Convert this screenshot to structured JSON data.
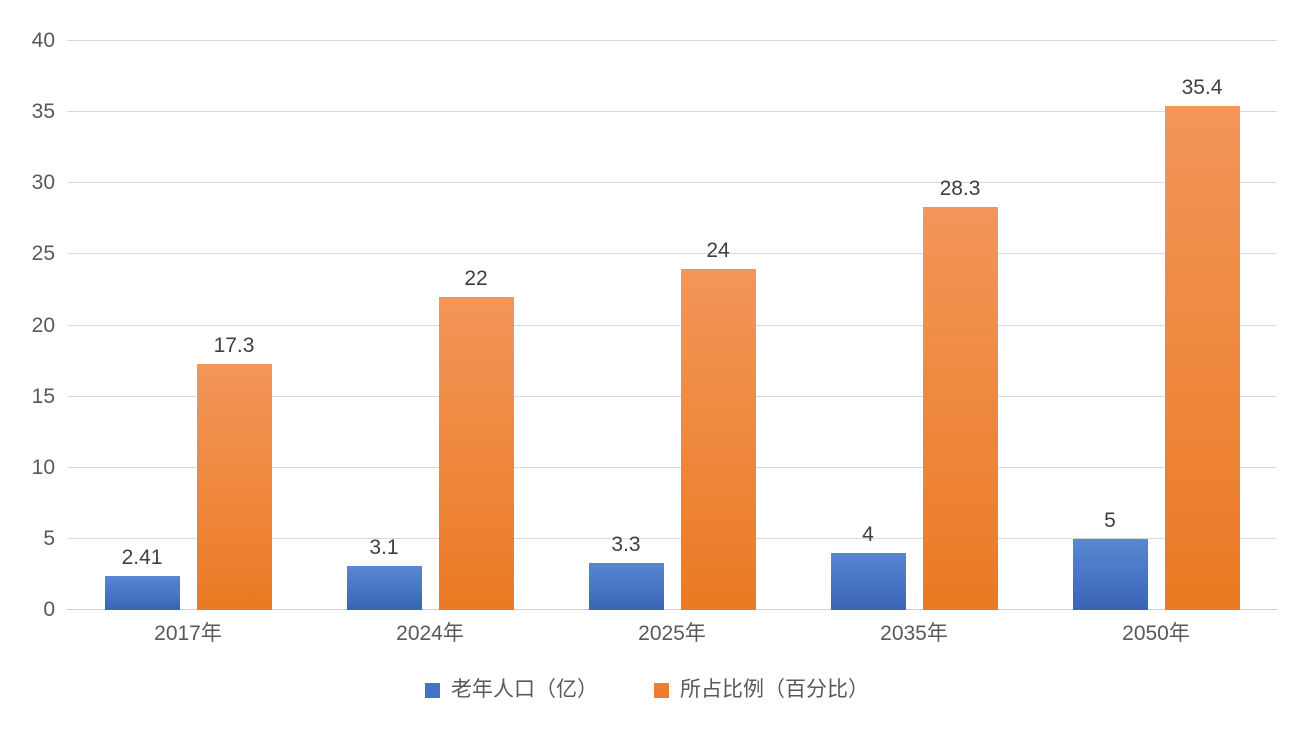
{
  "chart_data": {
    "type": "bar",
    "title": "",
    "categories": [
      "2017年",
      "2024年",
      "2025年",
      "2035年",
      "2050年"
    ],
    "series": [
      {
        "name": "老年人口（亿）",
        "color": "#4472C4",
        "gradient_top": "#5887D3",
        "gradient_bottom": "#3A64B7",
        "values": [
          2.41,
          3.1,
          3.3,
          4,
          5
        ],
        "data_labels": [
          "2.41",
          "3.1",
          "3.3",
          "4",
          "5"
        ]
      },
      {
        "name": "所占比例（百分比）",
        "color": "#ED7D31",
        "gradient_top": "#F39659",
        "gradient_bottom": "#EA7A23",
        "values": [
          17.3,
          22,
          24,
          28.3,
          35.4
        ],
        "data_labels": [
          "17.3",
          "22",
          "24",
          "28.3",
          "35.4"
        ]
      }
    ],
    "y_axis": {
      "min": 0,
      "max": 40,
      "step": 5,
      "tick_labels": [
        "0",
        "5",
        "10",
        "15",
        "20",
        "25",
        "30",
        "35",
        "40"
      ]
    },
    "grid": true,
    "legend_position": "bottom",
    "xlabel": "",
    "ylabel": ""
  },
  "colors": {
    "background": "#FFFFFF",
    "gridline": "#D9D9D9",
    "axis_label": "#595959",
    "data_label": "#404040"
  }
}
